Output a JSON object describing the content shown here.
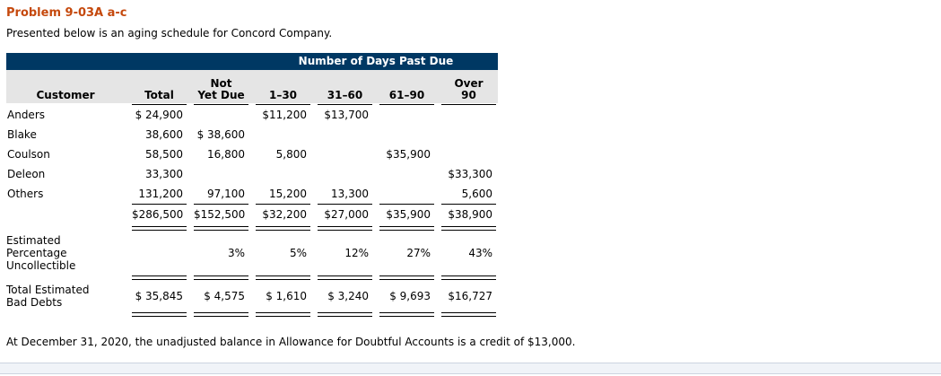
{
  "page": {
    "title": "Problem 9-03A a-c",
    "intro": "Presented below is an aging schedule for Concord Company.",
    "footnote": "At December 31, 2020, the unadjusted balance in Allowance for Doubtful Accounts is a credit of $13,000."
  },
  "table": {
    "banner": "Number of Days Past Due",
    "columns": [
      "Customer",
      "Total",
      "Not\nYet Due",
      "1–30",
      "31–60",
      "61–90",
      "Over\n90"
    ],
    "rows": [
      [
        "Anders",
        "$ 24,900",
        "",
        "$11,200",
        "$13,700",
        "",
        ""
      ],
      [
        "Blake",
        "38,600",
        "$ 38,600",
        "",
        "",
        "",
        ""
      ],
      [
        "Coulson",
        "58,500",
        "16,800",
        "5,800",
        "",
        "$35,900",
        ""
      ],
      [
        "Deleon",
        "33,300",
        "",
        "",
        "",
        "",
        "$33,300"
      ],
      [
        "Others",
        "131,200",
        "97,100",
        "15,200",
        "13,300",
        "",
        "5,600"
      ]
    ],
    "totals": [
      "",
      "$286,500",
      "$152,500",
      "$32,200",
      "$27,000",
      "$35,900",
      "$38,900"
    ],
    "pct_row": [
      "Estimated\nPercentage\nUncollectible",
      "",
      "3%",
      "5%",
      "12%",
      "27%",
      "43%"
    ],
    "bad_debts_row": [
      "Total Estimated\nBad Debts",
      "$ 35,845",
      "$ 4,575",
      "$ 1,610",
      "$ 3,240",
      "$ 9,693",
      "$16,727"
    ]
  },
  "colors": {
    "banner_bg": "#003863",
    "header_bg": "#e5e5e5",
    "title_text": "#c5490d",
    "rule": "#000000",
    "bottom_bar_bg": "#f0f3f8",
    "bottom_bar_border": "#ccd4e0"
  }
}
